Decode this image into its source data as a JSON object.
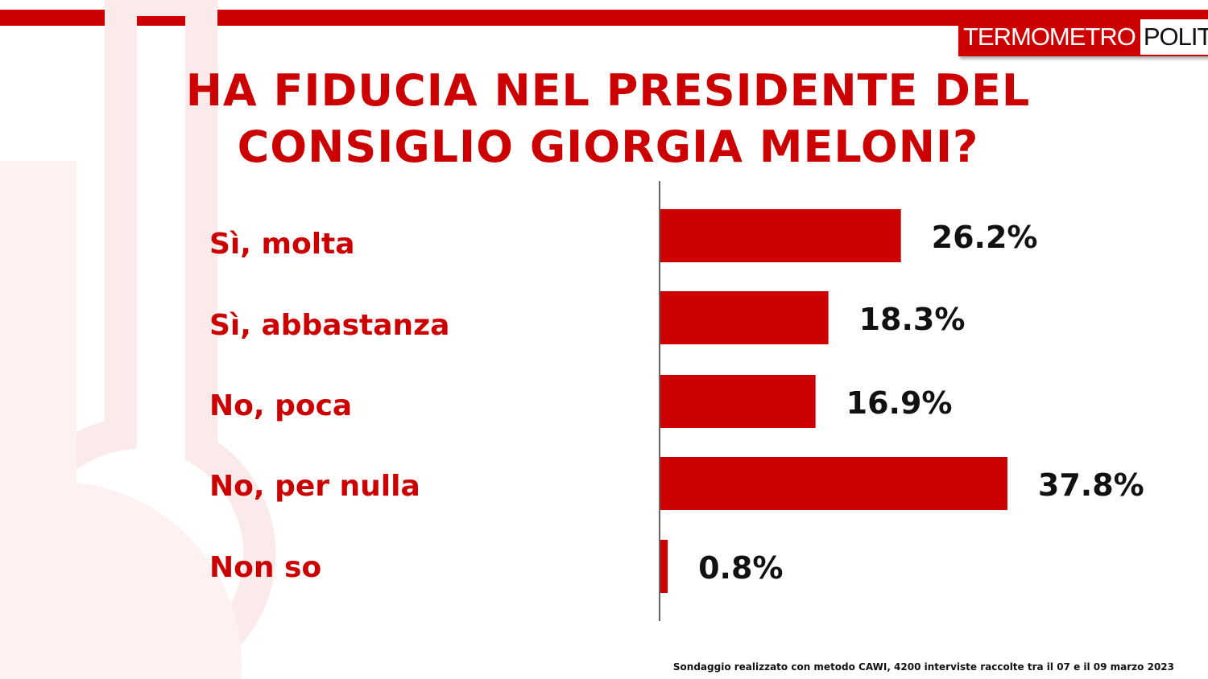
{
  "logo": {
    "part1": "TERMOMETRO",
    "part2": "POLITICO"
  },
  "title_lines": [
    "HA FIDUCIA NEL PRESIDENTE DEL",
    "CONSIGLIO GIORGIA MELONI?"
  ],
  "footnote": "Sondaggio realizzato con metodo CAWI, 4200 interviste raccolte tra il 07 e il 09 marzo 2023",
  "colors": {
    "accent": "#cc0000",
    "bar": "#cc0000",
    "text": "#111111"
  },
  "chart_data": {
    "type": "bar",
    "orientation": "horizontal",
    "title": "HA FIDUCIA NEL PRESIDENTE DEL CONSIGLIO GIORGIA MELONI?",
    "categories": [
      "Sì, molta",
      "Sì, abbastanza",
      "No, poca",
      "No, per nulla",
      "Non so"
    ],
    "values": [
      26.2,
      18.3,
      16.9,
      37.8,
      0.8
    ],
    "value_labels": [
      "26.2%",
      "18.3%",
      "16.9%",
      "37.8%",
      "0.8%"
    ],
    "unit": "%",
    "xlim": [
      0,
      40
    ],
    "grid": false,
    "legend": "none"
  }
}
